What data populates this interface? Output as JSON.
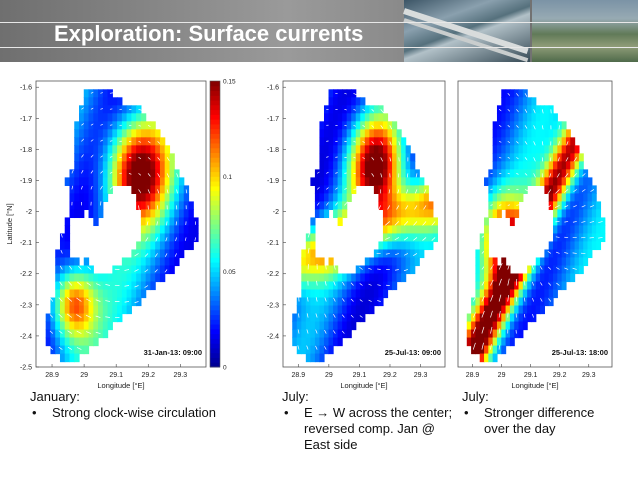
{
  "title": "Exploration: Surface currents",
  "chart_data": [
    {
      "type": "heatmap",
      "stamp": "31-Jan-13: 09:00",
      "xlabel": "Longitude [°E]",
      "ylabel": "Latitude [°N]",
      "xlim": [
        28.85,
        29.38
      ],
      "ylim": [
        -2.5,
        -1.58
      ],
      "xticks": [
        28.9,
        29,
        29.1,
        29.2,
        29.3
      ],
      "yticks": [
        -1.6,
        -1.7,
        -1.8,
        -1.9,
        -2,
        -2.1,
        -2.2,
        -2.3,
        -2.4,
        -2.5
      ],
      "colorbar": {
        "min": 0,
        "max": 0.15,
        "ticks": [
          0,
          0.05,
          0.1,
          0.15
        ]
      },
      "grid": false
    },
    {
      "type": "heatmap",
      "stamp": "25-Jul-13: 09:00",
      "xlim": [
        28.85,
        29.38
      ],
      "ylim": [
        -2.5,
        -1.58
      ],
      "xticks": [
        28.9,
        29,
        29.1,
        29.2,
        29.3
      ],
      "yticks": [
        -1.6,
        -1.7,
        -1.8,
        -1.9,
        -2,
        -2.1,
        -2.2,
        -2.3,
        -2.4
      ],
      "grid": false
    },
    {
      "type": "heatmap",
      "stamp": "25-Jul-13: 18:00",
      "xlim": [
        28.85,
        29.38
      ],
      "ylim": [
        -2.5,
        -1.58
      ],
      "xticks": [
        28.9,
        29,
        29.1,
        29.2,
        29.3
      ],
      "grid": false
    }
  ],
  "captions": [
    {
      "month": "January:",
      "bullets": [
        "Strong clock-wise circulation"
      ]
    },
    {
      "month": "July:",
      "bullets": [
        "E → W across the center; reversed comp. Jan @ East side"
      ]
    },
    {
      "month": "July:",
      "bullets": [
        "Stronger difference over the day"
      ]
    }
  ],
  "colors": {
    "header": "#8a8a8a",
    "colormap": [
      "#00008f",
      "#0000ff",
      "#00ffff",
      "#ffff00",
      "#ff0000",
      "#800000"
    ]
  }
}
